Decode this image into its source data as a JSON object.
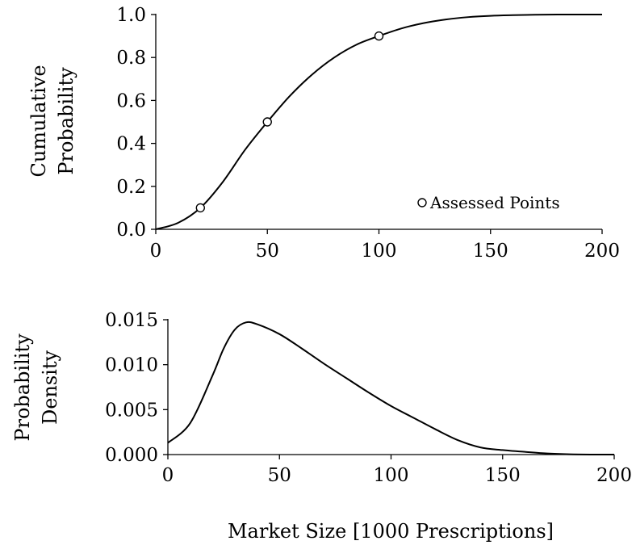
{
  "chart_data": [
    {
      "type": "line",
      "title": "",
      "ylabel": [
        "Cumulative",
        "Probability"
      ],
      "xlim": [
        0,
        200
      ],
      "ylim": [
        0,
        1
      ],
      "xticks": [
        0,
        50,
        100,
        150,
        200
      ],
      "xtick_labels": [
        "0",
        "50",
        "100",
        "150",
        "200"
      ],
      "yticks": [
        0,
        0.2,
        0.4,
        0.6,
        0.8,
        1.0
      ],
      "ytick_labels": [
        "0.0",
        "0.2",
        "0.4",
        "0.6",
        "0.8",
        "1.0"
      ],
      "grid": false,
      "legend": {
        "placement": "bottom-right",
        "entries": [
          "Assessed Points"
        ]
      },
      "series": [
        {
          "kind": "line",
          "x": [
            0,
            10,
            20,
            30,
            40,
            50,
            60,
            70,
            80,
            90,
            100,
            110,
            120,
            130,
            140,
            150,
            160,
            170,
            180,
            190,
            200
          ],
          "y": [
            0.0,
            0.03,
            0.1,
            0.22,
            0.37,
            0.5,
            0.62,
            0.72,
            0.8,
            0.86,
            0.9,
            0.935,
            0.96,
            0.977,
            0.988,
            0.994,
            0.997,
            0.999,
            1.0,
            1.0,
            1.0
          ]
        },
        {
          "name": "Assessed Points",
          "kind": "scatter",
          "marker": "open-circle",
          "x": [
            20,
            50,
            100
          ],
          "y": [
            0.1,
            0.5,
            0.9
          ]
        }
      ]
    },
    {
      "type": "line",
      "title": "",
      "xlabel": "Market Size [1000 Prescriptions]",
      "ylabel": [
        "Probability",
        "Density"
      ],
      "xlim": [
        0,
        200
      ],
      "ylim": [
        0,
        0.015
      ],
      "xticks": [
        0,
        50,
        100,
        150,
        200
      ],
      "xtick_labels": [
        "0",
        "50",
        "100",
        "150",
        "200"
      ],
      "yticks": [
        0,
        0.005,
        0.01,
        0.015
      ],
      "ytick_labels": [
        "0.000",
        "0.005",
        "0.010",
        "0.015"
      ],
      "grid": false,
      "series": [
        {
          "kind": "line",
          "x": [
            0,
            10,
            20,
            25,
            30,
            35,
            40,
            50,
            60,
            70,
            80,
            90,
            100,
            110,
            120,
            130,
            140,
            150,
            160,
            170,
            180,
            190,
            200
          ],
          "y": [
            0.0013,
            0.0035,
            0.0088,
            0.0118,
            0.0139,
            0.0147,
            0.0145,
            0.0134,
            0.0118,
            0.0101,
            0.0085,
            0.0069,
            0.0054,
            0.0041,
            0.0028,
            0.0016,
            0.0008,
            0.0005,
            0.0003,
            0.00012,
            3e-05,
            0.0,
            0.0
          ]
        }
      ]
    }
  ]
}
